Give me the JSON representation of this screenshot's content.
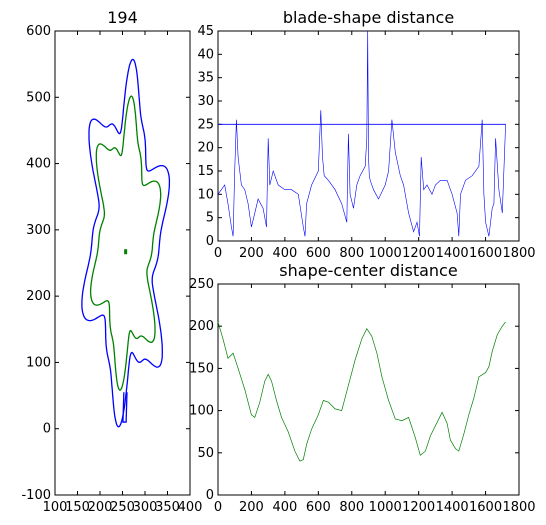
{
  "chart_data": [
    {
      "type": "line",
      "title": "194",
      "xlim": [
        100,
        400
      ],
      "ylim": [
        -100,
        600
      ],
      "xticks": [
        100,
        150,
        200,
        250,
        300,
        350,
        400
      ],
      "yticks": [
        -100,
        0,
        100,
        200,
        300,
        400,
        500,
        600
      ],
      "series": [
        {
          "color": "#0000ff",
          "role": "outer-contour"
        },
        {
          "color": "#008000",
          "role": "inner-contour"
        }
      ],
      "center_marker": {
        "x": 257,
        "y": 267,
        "color": "#008000"
      }
    },
    {
      "type": "line",
      "title": "blade-shape distance",
      "xlim": [
        0,
        1800
      ],
      "ylim": [
        0,
        45
      ],
      "xticks": [
        0,
        200,
        400,
        600,
        800,
        1000,
        1200,
        1400,
        1600,
        1800
      ],
      "yticks": [
        0,
        5,
        10,
        15,
        20,
        25,
        30,
        35,
        40,
        45
      ],
      "threshold": {
        "y": 25,
        "x": [
          0,
          1720
        ],
        "color": "#0000ff"
      },
      "series": [
        {
          "color": "#0000ff",
          "x": [
            0,
            20,
            40,
            60,
            80,
            90,
            100,
            110,
            120,
            140,
            160,
            180,
            200,
            220,
            240,
            270,
            290,
            300,
            310,
            330,
            360,
            400,
            440,
            480,
            510,
            520,
            530,
            560,
            600,
            615,
            625,
            635,
            660,
            700,
            740,
            770,
            780,
            790,
            810,
            830,
            850,
            880,
            890,
            895,
            900,
            905,
            910,
            930,
            960,
            1000,
            1020,
            1040,
            1060,
            1090,
            1110,
            1140,
            1170,
            1190,
            1205,
            1215,
            1230,
            1250,
            1280,
            1300,
            1330,
            1370,
            1400,
            1430,
            1440,
            1450,
            1480,
            1520,
            1560,
            1580,
            1590,
            1600,
            1620,
            1640,
            1650,
            1660,
            1680,
            1700,
            1720
          ],
          "values": [
            10,
            11,
            12,
            8,
            3,
            1,
            15,
            26,
            18,
            12,
            11,
            8,
            3,
            6,
            9,
            7,
            3,
            22,
            12,
            15,
            12,
            11,
            11,
            10,
            3,
            1,
            8,
            12,
            15,
            28,
            18,
            14,
            13,
            11,
            8,
            4,
            23,
            10,
            7,
            12,
            14,
            16,
            22,
            45,
            18,
            14,
            13,
            11,
            9,
            12,
            15,
            26,
            19,
            14,
            12,
            6,
            2,
            4,
            1,
            18,
            11,
            12,
            10,
            12,
            13,
            13,
            10,
            6,
            1,
            10,
            13,
            14,
            16,
            26,
            10,
            4,
            1,
            7,
            8,
            22,
            11,
            6,
            25
          ]
        }
      ]
    },
    {
      "type": "line",
      "title": "shape-center distance",
      "xlim": [
        0,
        1800
      ],
      "ylim": [
        0,
        250
      ],
      "xticks": [
        0,
        200,
        400,
        600,
        800,
        1000,
        1200,
        1400,
        1600,
        1800
      ],
      "yticks": [
        0,
        50,
        100,
        150,
        200,
        250
      ],
      "series": [
        {
          "color": "#008000",
          "x": [
            0,
            30,
            60,
            90,
            120,
            160,
            200,
            220,
            250,
            280,
            300,
            320,
            350,
            380,
            420,
            460,
            490,
            510,
            530,
            560,
            600,
            630,
            660,
            700,
            740,
            780,
            820,
            860,
            890,
            920,
            950,
            980,
            1020,
            1060,
            1100,
            1140,
            1180,
            1210,
            1240,
            1270,
            1300,
            1340,
            1370,
            1390,
            1420,
            1440,
            1470,
            1500,
            1530,
            1560,
            1600,
            1620,
            1640,
            1670,
            1700,
            1720
          ],
          "values": [
            205,
            185,
            162,
            168,
            150,
            125,
            95,
            92,
            110,
            135,
            143,
            135,
            112,
            92,
            75,
            52,
            40,
            42,
            60,
            78,
            95,
            112,
            110,
            102,
            100,
            130,
            160,
            185,
            197,
            188,
            168,
            140,
            112,
            90,
            88,
            92,
            68,
            47,
            52,
            70,
            82,
            98,
            85,
            65,
            55,
            52,
            72,
            95,
            115,
            140,
            145,
            152,
            170,
            190,
            200,
            205
          ]
        }
      ]
    }
  ]
}
